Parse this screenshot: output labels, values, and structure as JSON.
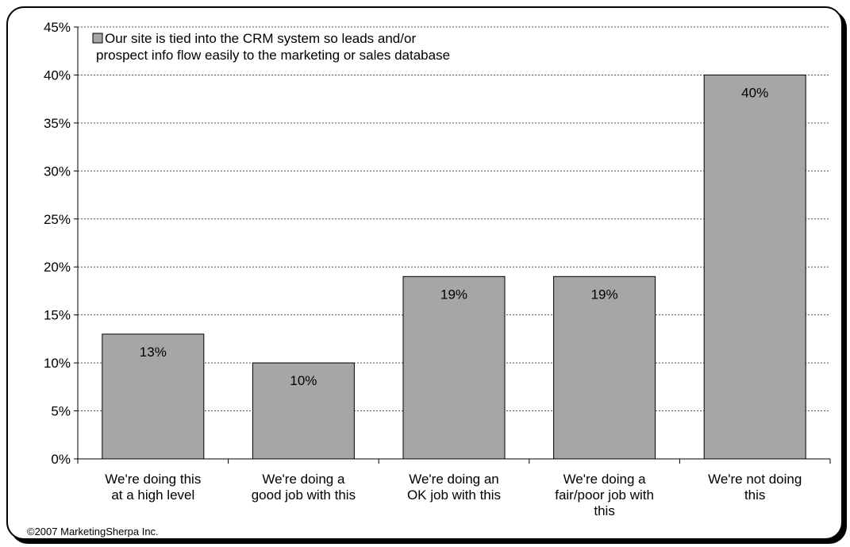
{
  "chart_data": {
    "type": "bar",
    "categories": [
      [
        "We're doing this",
        "at a high level"
      ],
      [
        "We're doing a",
        "good job with this"
      ],
      [
        "We're doing an",
        "OK job with this"
      ],
      [
        "We're doing a",
        "fair/poor job with",
        "this"
      ],
      [
        "We're not doing",
        "this"
      ]
    ],
    "series": [
      {
        "name": "Our site is tied into the CRM system so leads and/or prospect info flow easily to the marketing or sales database",
        "name_lines": [
          "Our site is tied into the CRM system so leads and/or",
          "prospect info flow easily to the marketing or sales database"
        ],
        "values": [
          13,
          10,
          19,
          19,
          40
        ],
        "value_labels": [
          "13%",
          "10%",
          "19%",
          "19%",
          "40%"
        ]
      }
    ],
    "ylim": [
      0,
      45
    ],
    "yticks": [
      0,
      5,
      10,
      15,
      20,
      25,
      30,
      35,
      40,
      45
    ],
    "ytick_labels": [
      "0%",
      "5%",
      "10%",
      "15%",
      "20%",
      "25%",
      "30%",
      "35%",
      "40%",
      "45%"
    ],
    "grid": true,
    "legend_position": "top-left",
    "colors": {
      "bar": "#a6a6a6",
      "bar_stroke": "#000000",
      "grid": "#555555"
    }
  },
  "footer": {
    "copyright": "©2007 MarketingSherpa Inc."
  }
}
